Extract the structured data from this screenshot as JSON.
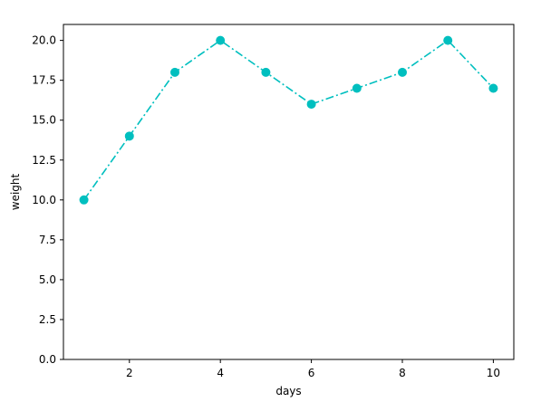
{
  "chart_data": {
    "type": "line",
    "title": "",
    "xlabel": "days",
    "ylabel": "weight",
    "x": [
      1,
      2,
      3,
      4,
      5,
      6,
      7,
      8,
      9,
      10
    ],
    "series": [
      {
        "values": [
          10,
          14,
          18,
          20,
          18,
          16,
          17,
          18,
          20,
          17
        ],
        "color": "#00bfbf",
        "line_style": "dash-dot",
        "marker": "circle"
      }
    ],
    "xlim": [
      0.55,
      10.45
    ],
    "ylim": [
      0,
      21
    ],
    "x_ticks": [
      2,
      4,
      6,
      8,
      10
    ],
    "x_tick_labels": [
      "2",
      "4",
      "6",
      "8",
      "10"
    ],
    "y_ticks": [
      0,
      2.5,
      5,
      7.5,
      10,
      12.5,
      15,
      17.5,
      20
    ],
    "y_tick_labels": [
      "0.0",
      "2.5",
      "5.0",
      "7.5",
      "10.0",
      "12.5",
      "15.0",
      "17.5",
      "20.0"
    ],
    "grid": false,
    "legend": "none"
  }
}
